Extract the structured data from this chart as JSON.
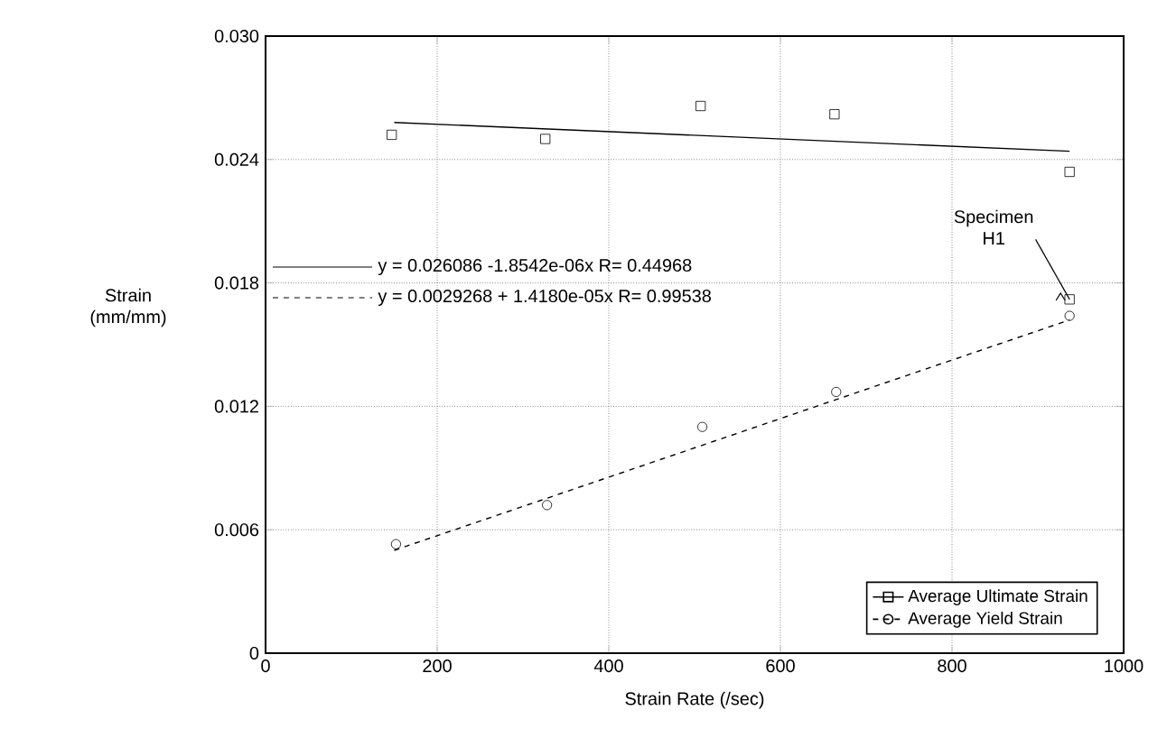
{
  "chart_data": {
    "type": "scatter",
    "xlabel": "Strain Rate (/sec)",
    "ylabel": "Strain (mm/mm)",
    "xlim": [
      0,
      1000
    ],
    "xticks": [
      0,
      200,
      400,
      600,
      800,
      1000
    ],
    "ylim": [
      0,
      0.03
    ],
    "yticks": [
      {
        "value": 0,
        "label": "0"
      },
      {
        "value": 0.006,
        "label": "0.006"
      },
      {
        "value": 0.012,
        "label": "0.012"
      },
      {
        "value": 0.018,
        "label": "0.018"
      },
      {
        "value": 0.024,
        "label": "0.024"
      },
      {
        "value": 0.03,
        "label": "0.030"
      }
    ],
    "grid": true,
    "legend": "bottom right",
    "series": [
      {
        "name": "Average Ultimate Strain",
        "marker": "square",
        "color": "#000000",
        "line_style": "solid",
        "x": [
          147,
          326,
          507,
          663,
          937,
          937
        ],
        "values": [
          0.0252,
          0.025,
          0.0266,
          0.0262,
          0.0234,
          0.0172
        ]
      },
      {
        "name": "Average Yield Strain",
        "marker": "circle",
        "color": "#000000",
        "line_style": "dashed",
        "x": [
          152,
          328,
          509,
          665
        ],
        "values": [
          0.0053,
          0.0072,
          0.011,
          0.0127
        ]
      },
      {
        "marker": "circle",
        "color": "#000000",
        "x": [
          937
        ],
        "values": [
          0.0164
        ]
      },
      {
        "type": "line",
        "marker": "none",
        "line_style": "solid",
        "color": "#000000",
        "x": [
          150,
          937
        ],
        "values": [
          0.0258,
          0.0244
        ]
      },
      {
        "type": "line",
        "marker": "none",
        "line_style": "dashed",
        "color": "#000000",
        "x": [
          150,
          937
        ],
        "values": [
          0.005,
          0.0162
        ]
      }
    ],
    "annotations": [
      "y = 0.026086 -1.8542e-06x R= 0.44968",
      "y = 0.0029268 + 1.4180e-05x R= 0.99538",
      {
        "text": "Specimen H1",
        "x": 937,
        "y": 0.0172
      }
    ]
  }
}
